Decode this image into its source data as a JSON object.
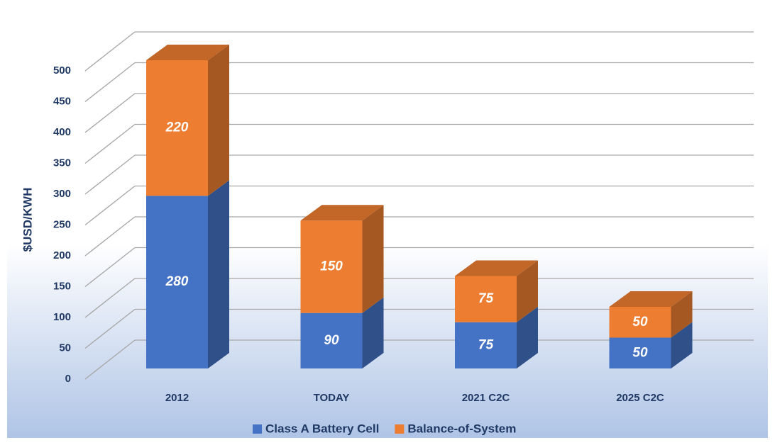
{
  "chart_data": {
    "type": "bar",
    "stacked": true,
    "three_d": true,
    "y_label": "$USD/KWH",
    "categories": [
      "2012",
      "TODAY",
      "2021 C2C",
      "2025 C2C"
    ],
    "series": [
      {
        "name": "Class A Battery Cell",
        "color": "#4472c4",
        "values": [
          280,
          90,
          75,
          50
        ]
      },
      {
        "name": "Balance-of-System",
        "color": "#ed7d31",
        "values": [
          220,
          150,
          75,
          50
        ]
      }
    ],
    "ylim": [
      0,
      500
    ],
    "yticks": [
      0,
      50,
      100,
      150,
      200,
      250,
      300,
      350,
      400,
      450,
      500
    ],
    "grid": true,
    "legend": "bottom"
  }
}
